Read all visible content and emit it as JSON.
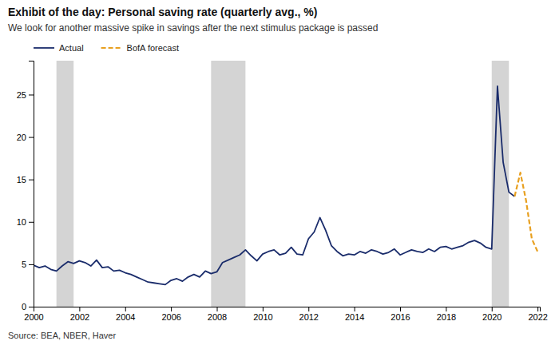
{
  "chart_data": {
    "type": "line",
    "title": "Exhibit of the day: Personal saving rate (quarterly avg., %)",
    "subtitle": "We look for another massive spike in savings after the next stimulus package is passed",
    "source": "Source: BEA, NBER, Haver",
    "series": [
      {
        "name": "Actual",
        "color": "#1a2c6b",
        "line_style": "solid",
        "x": [
          2000.0,
          2000.25,
          2000.5,
          2000.75,
          2001.0,
          2001.25,
          2001.5,
          2001.75,
          2002.0,
          2002.25,
          2002.5,
          2002.75,
          2003.0,
          2003.25,
          2003.5,
          2003.75,
          2004.0,
          2004.25,
          2004.5,
          2004.75,
          2005.0,
          2005.25,
          2005.5,
          2005.75,
          2006.0,
          2006.25,
          2006.5,
          2006.75,
          2007.0,
          2007.25,
          2007.5,
          2007.75,
          2008.0,
          2008.25,
          2008.5,
          2008.75,
          2009.0,
          2009.25,
          2009.5,
          2009.75,
          2010.0,
          2010.25,
          2010.5,
          2010.75,
          2011.0,
          2011.25,
          2011.5,
          2011.75,
          2012.0,
          2012.25,
          2012.5,
          2012.75,
          2013.0,
          2013.25,
          2013.5,
          2013.75,
          2014.0,
          2014.25,
          2014.5,
          2014.75,
          2015.0,
          2015.25,
          2015.5,
          2015.75,
          2016.0,
          2016.25,
          2016.5,
          2016.75,
          2017.0,
          2017.25,
          2017.5,
          2017.75,
          2018.0,
          2018.25,
          2018.5,
          2018.75,
          2019.0,
          2019.25,
          2019.5,
          2019.75,
          2020.0,
          2020.25,
          2020.5,
          2020.75,
          2021.0
        ],
        "values": [
          4.9,
          4.6,
          4.8,
          4.4,
          4.2,
          4.8,
          5.3,
          5.1,
          5.4,
          5.2,
          4.8,
          5.5,
          4.6,
          4.7,
          4.2,
          4.3,
          4.0,
          3.8,
          3.5,
          3.2,
          2.9,
          2.8,
          2.7,
          2.6,
          3.1,
          3.3,
          3.0,
          3.5,
          3.8,
          3.5,
          4.2,
          3.9,
          4.1,
          5.2,
          5.5,
          5.8,
          6.1,
          6.7,
          6.0,
          5.4,
          6.2,
          6.5,
          6.7,
          6.1,
          6.3,
          7.0,
          6.2,
          6.1,
          8.0,
          8.8,
          10.5,
          9.0,
          7.2,
          6.5,
          6.0,
          6.2,
          6.1,
          6.5,
          6.3,
          6.7,
          6.5,
          6.2,
          6.4,
          6.8,
          6.1,
          6.4,
          6.7,
          6.5,
          6.4,
          6.8,
          6.5,
          7.0,
          7.1,
          6.8,
          7.0,
          7.2,
          7.6,
          7.8,
          7.5,
          7.0,
          6.8,
          26.0,
          17.0,
          13.5,
          13.0
        ]
      },
      {
        "name": "BofA forecast",
        "color": "#e8a020",
        "line_style": "dashed",
        "x": [
          2021.0,
          2021.25,
          2021.5,
          2021.75,
          2022.0
        ],
        "values": [
          13.0,
          15.8,
          12.5,
          8.0,
          6.5
        ]
      }
    ],
    "bands": [
      {
        "x0": 2001.0,
        "x1": 2001.75,
        "color": "#b0b0b0"
      },
      {
        "x0": 2007.75,
        "x1": 2009.25,
        "color": "#b0b0b0"
      },
      {
        "x0": 2020.0,
        "x1": 2020.75,
        "color": "#b0b0b0"
      }
    ],
    "xlim": [
      2000,
      2022.1
    ],
    "ylim": [
      0,
      29
    ],
    "yticks": [
      0,
      5,
      10,
      15,
      20,
      25
    ],
    "xticks": [
      2000,
      2002,
      2004,
      2006,
      2008,
      2010,
      2012,
      2014,
      2016,
      2018,
      2020,
      2022
    ],
    "grid": false,
    "legend": "top"
  }
}
